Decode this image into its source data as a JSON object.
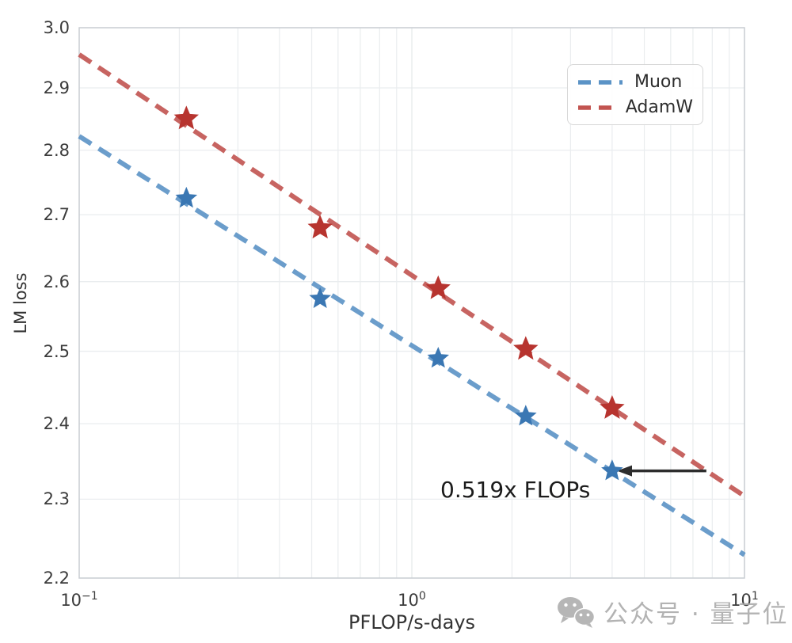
{
  "chart_data": {
    "type": "scatter",
    "title": "",
    "xlabel": "PFLOP/s-days",
    "ylabel": "LM loss",
    "xscale": "log",
    "yscale": "log",
    "xlim": [
      0.1,
      10
    ],
    "ylim": [
      2.2,
      3.0
    ],
    "grid": true,
    "legend_position": "upper right",
    "xticks": [
      {
        "base": "10",
        "exp": "−1",
        "value": 0.1
      },
      {
        "base": "10",
        "exp": "0",
        "value": 1
      },
      {
        "base": "10",
        "exp": "1",
        "value": 10
      }
    ],
    "yticks": [
      {
        "label": "2.2",
        "value": 2.2
      },
      {
        "label": "2.3",
        "value": 2.3
      },
      {
        "label": "2.4",
        "value": 2.4
      },
      {
        "label": "2.5",
        "value": 2.5
      },
      {
        "label": "2.6",
        "value": 2.6
      },
      {
        "label": "2.7",
        "value": 2.7
      },
      {
        "label": "2.8",
        "value": 2.8
      },
      {
        "label": "2.9",
        "value": 2.9
      },
      {
        "label": "3.0",
        "value": 3.0
      }
    ],
    "x": [
      0.21,
      0.53,
      1.2,
      2.2,
      4.0
    ],
    "series": [
      {
        "name": "Muon",
        "marker": "star",
        "marker_color": "#3a77b3",
        "line_color": "#5b93c6",
        "marker_size": 14.5,
        "values": [
          2.725,
          2.575,
          2.49,
          2.41,
          2.337
        ],
        "trend_fit": {
          "x": [
            0.1,
            10
          ],
          "y": [
            2.822,
            2.229
          ]
        }
      },
      {
        "name": "AdamW",
        "marker": "star",
        "marker_color": "#b7342f",
        "line_color": "#c25450",
        "marker_size": 16.5,
        "values": [
          2.85,
          2.68,
          2.59,
          2.503,
          2.421
        ],
        "trend_fit": {
          "x": [
            0.1,
            10
          ],
          "y": [
            2.955,
            2.304
          ]
        }
      }
    ],
    "annotation": {
      "text": "0.519x FLOPs",
      "arrow": {
        "loss": 2.337,
        "x_from": 7.68,
        "x_to": 4.37,
        "color": "#2d2d2d"
      }
    }
  },
  "watermark": {
    "icon": "wechat-icon",
    "text": "公众号 · 量子位",
    "color": "#a9a9a9"
  },
  "style_colors": {
    "grid": "#eaedef",
    "spine": "#c9ced3",
    "tick_text": "#3b3b3b"
  }
}
